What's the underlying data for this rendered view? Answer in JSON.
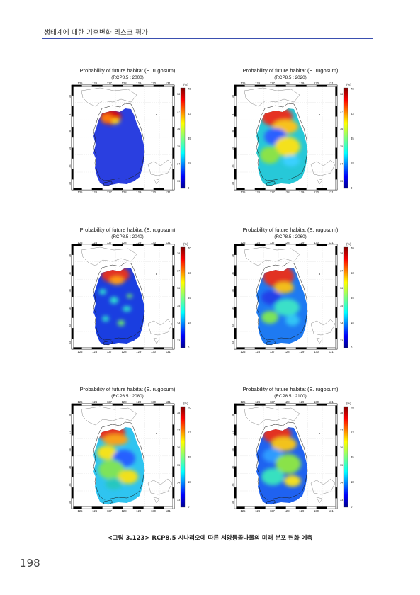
{
  "header": {
    "title": "생태계에 대한 기후변화 리스크 평가",
    "rule_color": "#3a4fb0"
  },
  "figure": {
    "caption": "<그림 3.123> RCP8.5 시나리오에 따른 서양등골나물의 미래 분포 변화 예측",
    "panels": [
      {
        "title": "Probability of future habitat (E. rugosum)",
        "subtitle": "(RCP8.5 : 2000)"
      },
      {
        "title": "Probability of future habitat (E. rugosum)",
        "subtitle": "(RCP8.5 : 2020)"
      },
      {
        "title": "Probability of future habitat (E. rugosum)",
        "subtitle": "(RCP8.5 : 2040)"
      },
      {
        "title": "Probability of future habitat (E. rugosum)",
        "subtitle": "(RCP8.5 : 2060)"
      },
      {
        "title": "Probability of future habitat (E. rugosum)",
        "subtitle": "(RCP8.5 : 2080)"
      },
      {
        "title": "Probability of future habitat (E. rugosum)",
        "subtitle": "(RCP8.5 : 2100)"
      }
    ],
    "lon_ticks": [
      "125",
      "126",
      "127",
      "128",
      "129",
      "130",
      "131"
    ],
    "lat_ticks": [
      "38",
      "37",
      "36",
      "35",
      "34",
      "33"
    ],
    "colorbar": {
      "unit": "(%)",
      "ticks": [
        "70",
        "53",
        "35",
        "18",
        "0"
      ]
    }
  },
  "page": {
    "number": "198"
  }
}
